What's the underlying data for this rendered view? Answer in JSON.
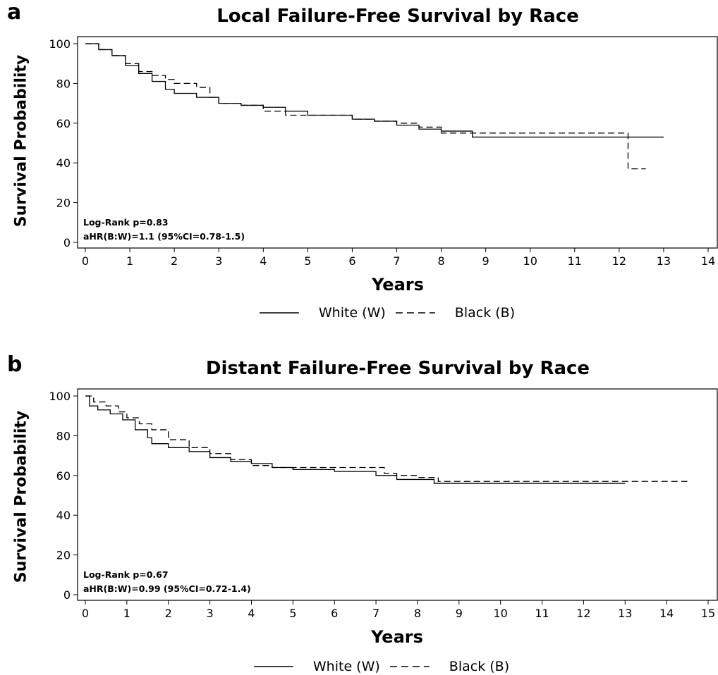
{
  "chart_data": [
    {
      "type": "line",
      "panel_label": "a",
      "title": "Local Failure-Free Survival by Race",
      "xlabel": "Years",
      "ylabel": "Survival Probability",
      "xlim": [
        0,
        14
      ],
      "ylim": [
        0,
        100
      ],
      "xticks": [
        0,
        1,
        2,
        3,
        4,
        5,
        6,
        7,
        8,
        9,
        10,
        11,
        12,
        13,
        14
      ],
      "yticks": [
        0,
        20,
        40,
        60,
        80,
        100
      ],
      "annotations": [
        "Log-Rank p=0.83",
        "aHR(B:W)=1.1 (95%CI=0.78-1.5)"
      ],
      "legend_position": "bottom",
      "series": [
        {
          "name": "White (W)",
          "style": "solid",
          "x": [
            0,
            0.3,
            0.6,
            0.9,
            1.2,
            1.5,
            1.8,
            2.0,
            2.5,
            3.0,
            3.5,
            4.0,
            4.5,
            5.0,
            5.5,
            6.0,
            6.5,
            7.0,
            7.5,
            8.0,
            8.7,
            9.0,
            10.0,
            11.0,
            12.0,
            13.0
          ],
          "y": [
            100,
            97,
            94,
            89,
            85,
            81,
            77,
            75,
            73,
            70,
            69,
            68,
            66,
            64,
            64,
            62,
            61,
            59,
            57,
            56,
            53,
            53,
            53,
            53,
            53,
            53
          ]
        },
        {
          "name": "Black (B)",
          "style": "dashed",
          "x": [
            0,
            0.3,
            0.6,
            0.9,
            1.2,
            1.5,
            1.8,
            2.0,
            2.5,
            2.8,
            3.0,
            3.5,
            4.0,
            4.5,
            5.0,
            6.0,
            6.5,
            7.0,
            7.5,
            8.0,
            8.7,
            9.0,
            10.0,
            11.0,
            12.1,
            12.2,
            12.6
          ],
          "y": [
            100,
            97,
            94,
            90,
            86,
            84,
            82,
            80,
            78,
            73,
            70,
            69,
            66,
            64,
            64,
            62,
            61,
            60,
            58,
            55,
            55,
            55,
            55,
            55,
            55,
            37,
            37
          ]
        }
      ]
    },
    {
      "type": "line",
      "panel_label": "b",
      "title": "Distant Failure-Free Survival by Race",
      "xlabel": "Years",
      "ylabel": "Survival Probability",
      "xlim": [
        0,
        15
      ],
      "ylim": [
        0,
        100
      ],
      "xticks": [
        0,
        1,
        2,
        3,
        4,
        5,
        6,
        7,
        8,
        9,
        10,
        11,
        12,
        13,
        14,
        15
      ],
      "yticks": [
        0,
        20,
        40,
        60,
        80,
        100
      ],
      "annotations": [
        "Log-Rank p=0.67",
        "aHR(B:W)=0.99 (95%CI=0.72-1.4)"
      ],
      "legend_position": "bottom",
      "series": [
        {
          "name": "White (W)",
          "style": "solid",
          "x": [
            0,
            0.1,
            0.3,
            0.6,
            0.9,
            1.2,
            1.5,
            1.6,
            2.0,
            2.5,
            3.0,
            3.5,
            4.0,
            4.5,
            5.0,
            5.5,
            6.0,
            7.0,
            7.5,
            8.0,
            8.4,
            9.0,
            10.0,
            11.0,
            12.0,
            13.0
          ],
          "y": [
            100,
            95,
            93,
            91,
            88,
            83,
            79,
            76,
            74,
            72,
            69,
            67,
            66,
            64,
            63,
            63,
            62,
            60,
            58,
            58,
            56,
            56,
            56,
            56,
            56,
            56
          ]
        },
        {
          "name": "Black (B)",
          "style": "dashed",
          "x": [
            0,
            0.2,
            0.5,
            0.8,
            1.0,
            1.3,
            1.6,
            2.0,
            2.5,
            3.0,
            3.5,
            4.0,
            4.5,
            5.0,
            5.5,
            6.0,
            7.0,
            7.2,
            7.5,
            8.0,
            8.5,
            9.0,
            10.0,
            11.0,
            12.0,
            13.0,
            14.0,
            14.5
          ],
          "y": [
            100,
            97,
            95,
            92,
            89,
            86,
            83,
            78,
            74,
            71,
            68,
            65,
            64,
            64,
            64,
            64,
            64,
            61,
            60,
            59,
            57,
            57,
            57,
            57,
            57,
            57,
            57,
            57
          ]
        }
      ]
    }
  ]
}
